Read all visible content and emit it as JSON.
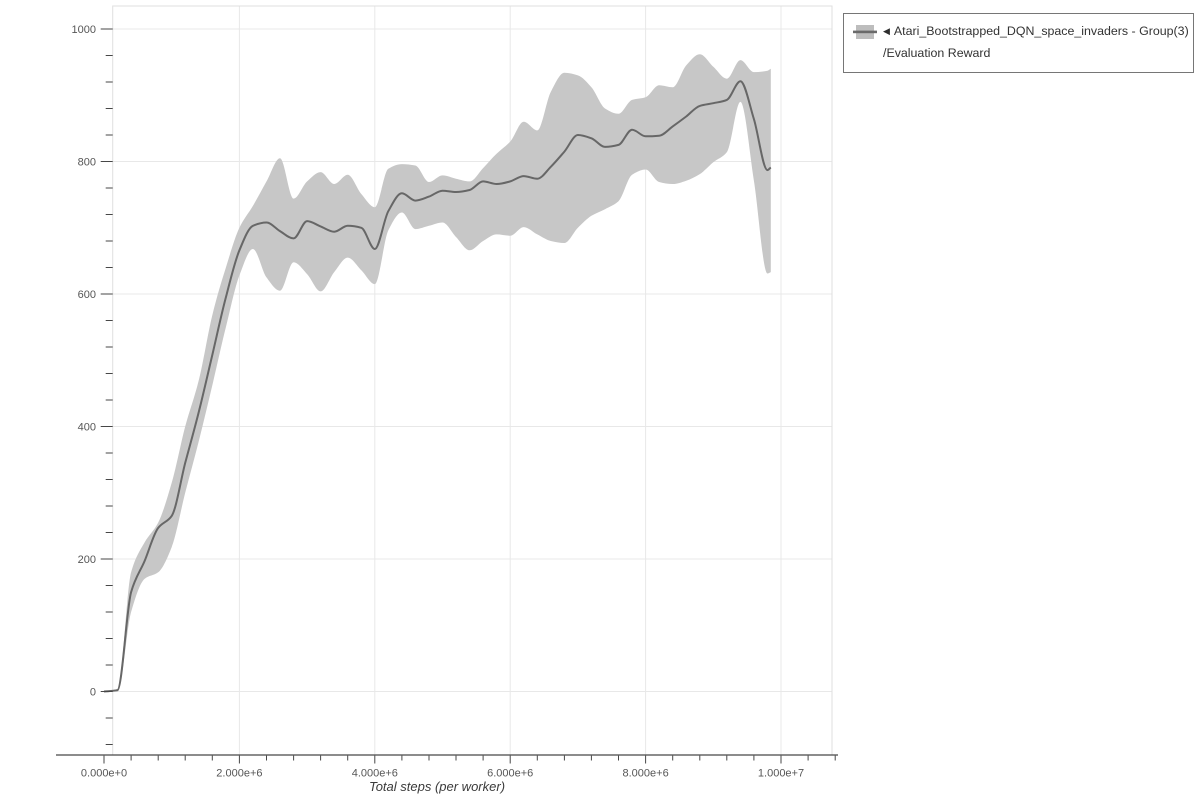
{
  "window": {
    "background": "#ffffff"
  },
  "legend": {
    "arrow": "◀",
    "series_name": "Atari_Bootstrapped_DQN_space_invaders - Group(3)",
    "metric_name": "/Evaluation Reward"
  },
  "axes": {
    "x_title": "Total steps (per worker)",
    "x_ticks": [
      {
        "value": 0,
        "label": "0.000e+0"
      },
      {
        "value": 2000000,
        "label": "2.000e+6"
      },
      {
        "value": 4000000,
        "label": "4.000e+6"
      },
      {
        "value": 6000000,
        "label": "6.000e+6"
      },
      {
        "value": 8000000,
        "label": "8.000e+6"
      },
      {
        "value": 10000000,
        "label": "1.000e+7"
      }
    ],
    "y_ticks": [
      {
        "value": 0,
        "label": "0"
      },
      {
        "value": 200,
        "label": "200"
      },
      {
        "value": 400,
        "label": "400"
      },
      {
        "value": 600,
        "label": "600"
      },
      {
        "value": 800,
        "label": "800"
      },
      {
        "value": 1000,
        "label": "1000"
      }
    ],
    "x_minor_step": 400000,
    "y_minor_step": 40
  },
  "chart_data": {
    "type": "line",
    "title": "",
    "xlabel": "Total steps (per worker)",
    "ylabel": "",
    "grid": true,
    "legend_position": "top-right-outside",
    "x_range": [
      0,
      10700000
    ],
    "y_range": [
      -96,
      1035
    ],
    "band_style": "min-max shaded region",
    "series": [
      {
        "name": "Atari_Bootstrapped_DQN_space_invaders - Group(3)/Evaluation Reward",
        "x": [
          0,
          200000,
          400000,
          600000,
          800000,
          1000000,
          1200000,
          1400000,
          1600000,
          1800000,
          2000000,
          2200000,
          2400000,
          2600000,
          2800000,
          3000000,
          3200000,
          3400000,
          3600000,
          3800000,
          4000000,
          4200000,
          4400000,
          4600000,
          4800000,
          5000000,
          5200000,
          5400000,
          5600000,
          5800000,
          6000000,
          6200000,
          6400000,
          6600000,
          6800000,
          7000000,
          7200000,
          7400000,
          7600000,
          7800000,
          8000000,
          8200000,
          8400000,
          8600000,
          8800000,
          9000000,
          9200000,
          9400000,
          9600000,
          9800000,
          9850000
        ],
        "mean": [
          0,
          2,
          150,
          197,
          247,
          265,
          345,
          422,
          508,
          595,
          666,
          703,
          708,
          695,
          684,
          710,
          702,
          694,
          703,
          700,
          668,
          725,
          752,
          741,
          747,
          756,
          754,
          757,
          770,
          766,
          770,
          778,
          774,
          792,
          815,
          840,
          835,
          822,
          825,
          848,
          838,
          839,
          853,
          868,
          884,
          888,
          893,
          921,
          864,
          787,
          791
        ],
        "band_lower": [
          0,
          0,
          120,
          170,
          180,
          218,
          300,
          378,
          462,
          550,
          628,
          668,
          625,
          605,
          648,
          630,
          604,
          633,
          655,
          636,
          615,
          696,
          723,
          698,
          703,
          708,
          686,
          666,
          680,
          690,
          688,
          701,
          690,
          680,
          677,
          700,
          718,
          728,
          740,
          780,
          788,
          769,
          766,
          771,
          781,
          799,
          814,
          890,
          771,
          631,
          633
        ],
        "band_upper": [
          0,
          4,
          180,
          225,
          255,
          315,
          400,
          470,
          568,
          640,
          700,
          733,
          770,
          805,
          744,
          770,
          784,
          766,
          780,
          751,
          731,
          789,
          796,
          794,
          769,
          779,
          774,
          770,
          790,
          812,
          830,
          860,
          847,
          905,
          934,
          930,
          912,
          880,
          872,
          893,
          897,
          915,
          912,
          945,
          962,
          943,
          925,
          953,
          935,
          937,
          940
        ]
      }
    ]
  },
  "theme": {
    "grid": "#e8e8e8",
    "plot_border": "#dfdfdf",
    "axis": "#474747",
    "tick_label": "#565656",
    "line": "#676767",
    "band": "#c7c7c7",
    "legend_border": "#767676",
    "text": "#333333"
  }
}
